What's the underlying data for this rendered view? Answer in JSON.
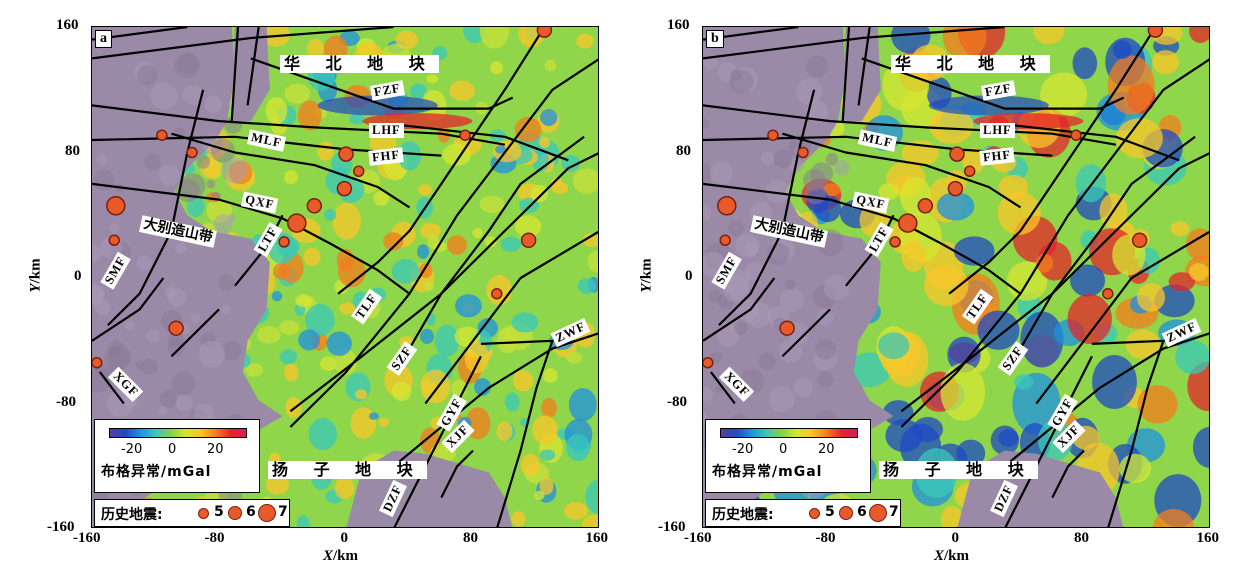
{
  "axes": {
    "x_title": "X/km",
    "y_title": "Y/km",
    "x_ticks": [
      "-160",
      "-80",
      "0",
      "80",
      "160"
    ],
    "y_ticks": [
      "160",
      "80",
      "0",
      "-80",
      "-160"
    ],
    "range": [
      -160,
      160
    ]
  },
  "panels": [
    {
      "label": "a",
      "key": "a"
    },
    {
      "label": "b",
      "key": "b"
    }
  ],
  "labels": {
    "north_block": "华 北 地 块",
    "south_block": "扬 子 地 块",
    "mountain": "大别造山带",
    "faults": {
      "FZF": "FZF",
      "LHF": "LHF",
      "MLF": "MLF",
      "FHF": "FHF",
      "QXF": "QXF",
      "LTF": "LTF",
      "SMF": "SMF",
      "TLF": "TLF",
      "SZF": "SZF",
      "ZWF": "ZWF",
      "XGF": "XGF",
      "GYF": "GYF",
      "XJF": "XJF",
      "DZF": "DZF"
    }
  },
  "legend": {
    "colorbar_title": "布格异常/mGal",
    "colorbar_ticks": [
      "-20",
      "0",
      "20"
    ],
    "colorbar_range": [
      -30,
      35
    ],
    "quake_title": "历史地震:",
    "magnitudes": [
      "5",
      "6",
      "7"
    ]
  },
  "colors": {
    "background_purple": "#9a8aa8",
    "low": "#1f49c4",
    "mid": "#7ed348",
    "high": "#e3242b",
    "quake": "#e85a2a"
  },
  "earthquakes": [
    {
      "x": 125,
      "y": 158,
      "mag": 6
    },
    {
      "x": -116,
      "y": 91,
      "mag": 5
    },
    {
      "x": -97,
      "y": 80,
      "mag": 5
    },
    {
      "x": 75,
      "y": 91,
      "mag": 5
    },
    {
      "x": 0,
      "y": 79,
      "mag": 6
    },
    {
      "x": 8,
      "y": 68,
      "mag": 5
    },
    {
      "x": -1,
      "y": 57,
      "mag": 6
    },
    {
      "x": -145,
      "y": 46,
      "mag": 7
    },
    {
      "x": -20,
      "y": 46,
      "mag": 6
    },
    {
      "x": -31,
      "y": 35,
      "mag": 7
    },
    {
      "x": -146,
      "y": 24,
      "mag": 5
    },
    {
      "x": -39,
      "y": 23,
      "mag": 5
    },
    {
      "x": 115,
      "y": 24,
      "mag": 6
    },
    {
      "x": 95,
      "y": -10,
      "mag": 5
    },
    {
      "x": -107,
      "y": -32,
      "mag": 6
    },
    {
      "x": -157,
      "y": -54,
      "mag": 5
    }
  ]
}
